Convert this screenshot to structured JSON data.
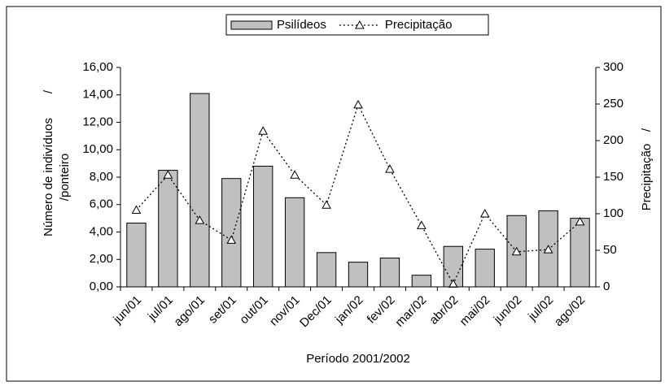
{
  "chart_data": {
    "type": "bar",
    "categories": [
      "jun/01",
      "jul/01",
      "ago/01",
      "set/01",
      "out/01",
      "nov/01",
      "Dec/01",
      "jan/02",
      "fev/02",
      "mar/02",
      "abr/02",
      "mai/02",
      "jun/02",
      "jul/02",
      "ago/02"
    ],
    "series": [
      {
        "name": "Psilídeos",
        "color": "#c0c0c0",
        "values": [
          4.65,
          8.5,
          14.1,
          7.9,
          8.8,
          6.5,
          2.5,
          1.8,
          2.1,
          0.85,
          2.95,
          2.75,
          5.2,
          5.55,
          5.0
        ]
      },
      {
        "name": "Precipitação",
        "color": "#000000",
        "axis": "y2",
        "type": "line",
        "values": [
          105,
          153,
          91,
          64,
          213,
          153,
          112,
          249,
          161,
          84,
          4,
          100,
          48,
          51,
          89
        ]
      }
    ],
    "ylim": [
      0,
      16
    ],
    "yticks": [
      {
        "value": 0,
        "label": "0,00"
      },
      {
        "value": 2,
        "label": "2,00"
      },
      {
        "value": 4,
        "label": "4,00"
      },
      {
        "value": 6,
        "label": "6,00"
      },
      {
        "value": 8,
        "label": "8,00"
      },
      {
        "value": 10,
        "label": "10,00"
      },
      {
        "value": 12,
        "label": "12,00"
      },
      {
        "value": 14,
        "label": "14,00"
      },
      {
        "value": 16,
        "label": "16,00"
      }
    ],
    "y2lim": [
      0,
      300
    ],
    "y2ticks": [
      0,
      50,
      100,
      150,
      200,
      250,
      300
    ],
    "x_label": "Período 2001/2002",
    "y_label_lines": [
      "Número de indivíduos",
      "/ponteiro"
    ],
    "y_label_mark": "/",
    "y2_label": "Precipitação",
    "y2_label_mark": "/",
    "legend": "top",
    "grid": false
  }
}
